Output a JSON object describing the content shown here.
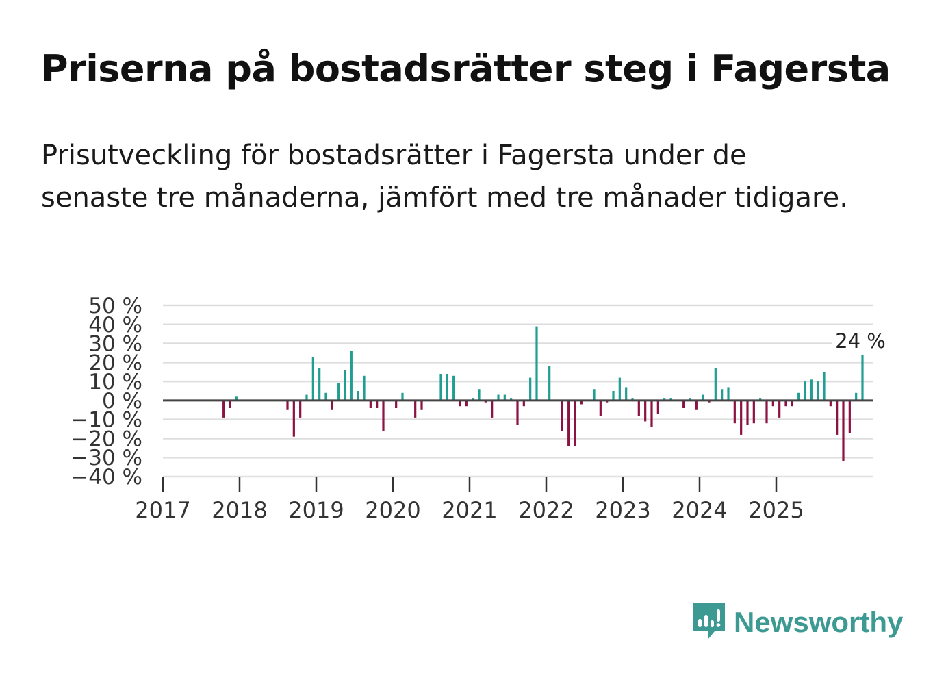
{
  "title": "Priserna på bostadsrätter steg i Fagersta",
  "subtitle": "Prisutveckling för bostadsrätter i Fagersta under de senaste tre månaderna, jämfört med tre månader tidigare.",
  "brand": {
    "name": "Newsworthy",
    "color": "#3d9a93"
  },
  "colors": {
    "positive": "#1f9e91",
    "negative": "#8c1242",
    "grid": "#dddddd",
    "zero_line": "#444444"
  },
  "chart_data": {
    "type": "bar",
    "title": "Priserna på bostadsrätter steg i Fagersta",
    "xlabel": "",
    "ylabel": "",
    "ylim": [
      -40,
      50
    ],
    "y_ticks": [
      50,
      40,
      30,
      20,
      10,
      0,
      -10,
      -20,
      -30,
      -40
    ],
    "y_tick_labels": [
      "50 %",
      "40 %",
      "30 %",
      "20 %",
      "10 %",
      "0 %",
      "−10 %",
      "−20 %",
      "−30 %",
      "−40 %"
    ],
    "x_ticks": [
      "2017",
      "2018",
      "2019",
      "2020",
      "2021",
      "2022",
      "2023",
      "2024",
      "2025"
    ],
    "start_year": 2017,
    "start_month": 1,
    "values": [
      null,
      null,
      null,
      null,
      null,
      null,
      null,
      null,
      null,
      -9,
      -4,
      2,
      0,
      0,
      0,
      0,
      0,
      0,
      0,
      -5,
      -19,
      -9,
      3,
      23,
      17,
      4,
      -5,
      9,
      16,
      26,
      5,
      13,
      -4,
      -4,
      -16,
      0,
      -4,
      4,
      0,
      -9,
      -5,
      0,
      0,
      14,
      14,
      13,
      -3,
      -3,
      1,
      6,
      -1,
      -9,
      3,
      3,
      1,
      -13,
      -3,
      12,
      39,
      0,
      18,
      0,
      -16,
      -24,
      -24,
      -2,
      0,
      6,
      -8,
      -1,
      5,
      12,
      7,
      1,
      -8,
      -11,
      -14,
      -7,
      1,
      1,
      0,
      -4,
      1,
      -5,
      3,
      -1,
      17,
      6,
      7,
      -12,
      -18,
      -13,
      -12,
      1,
      -12,
      -3,
      -9,
      -3,
      -3,
      4,
      10,
      11,
      10,
      15,
      -3,
      -18,
      -32,
      -17,
      4,
      24
    ],
    "annotation": {
      "label": "24 %",
      "value": 24
    }
  }
}
